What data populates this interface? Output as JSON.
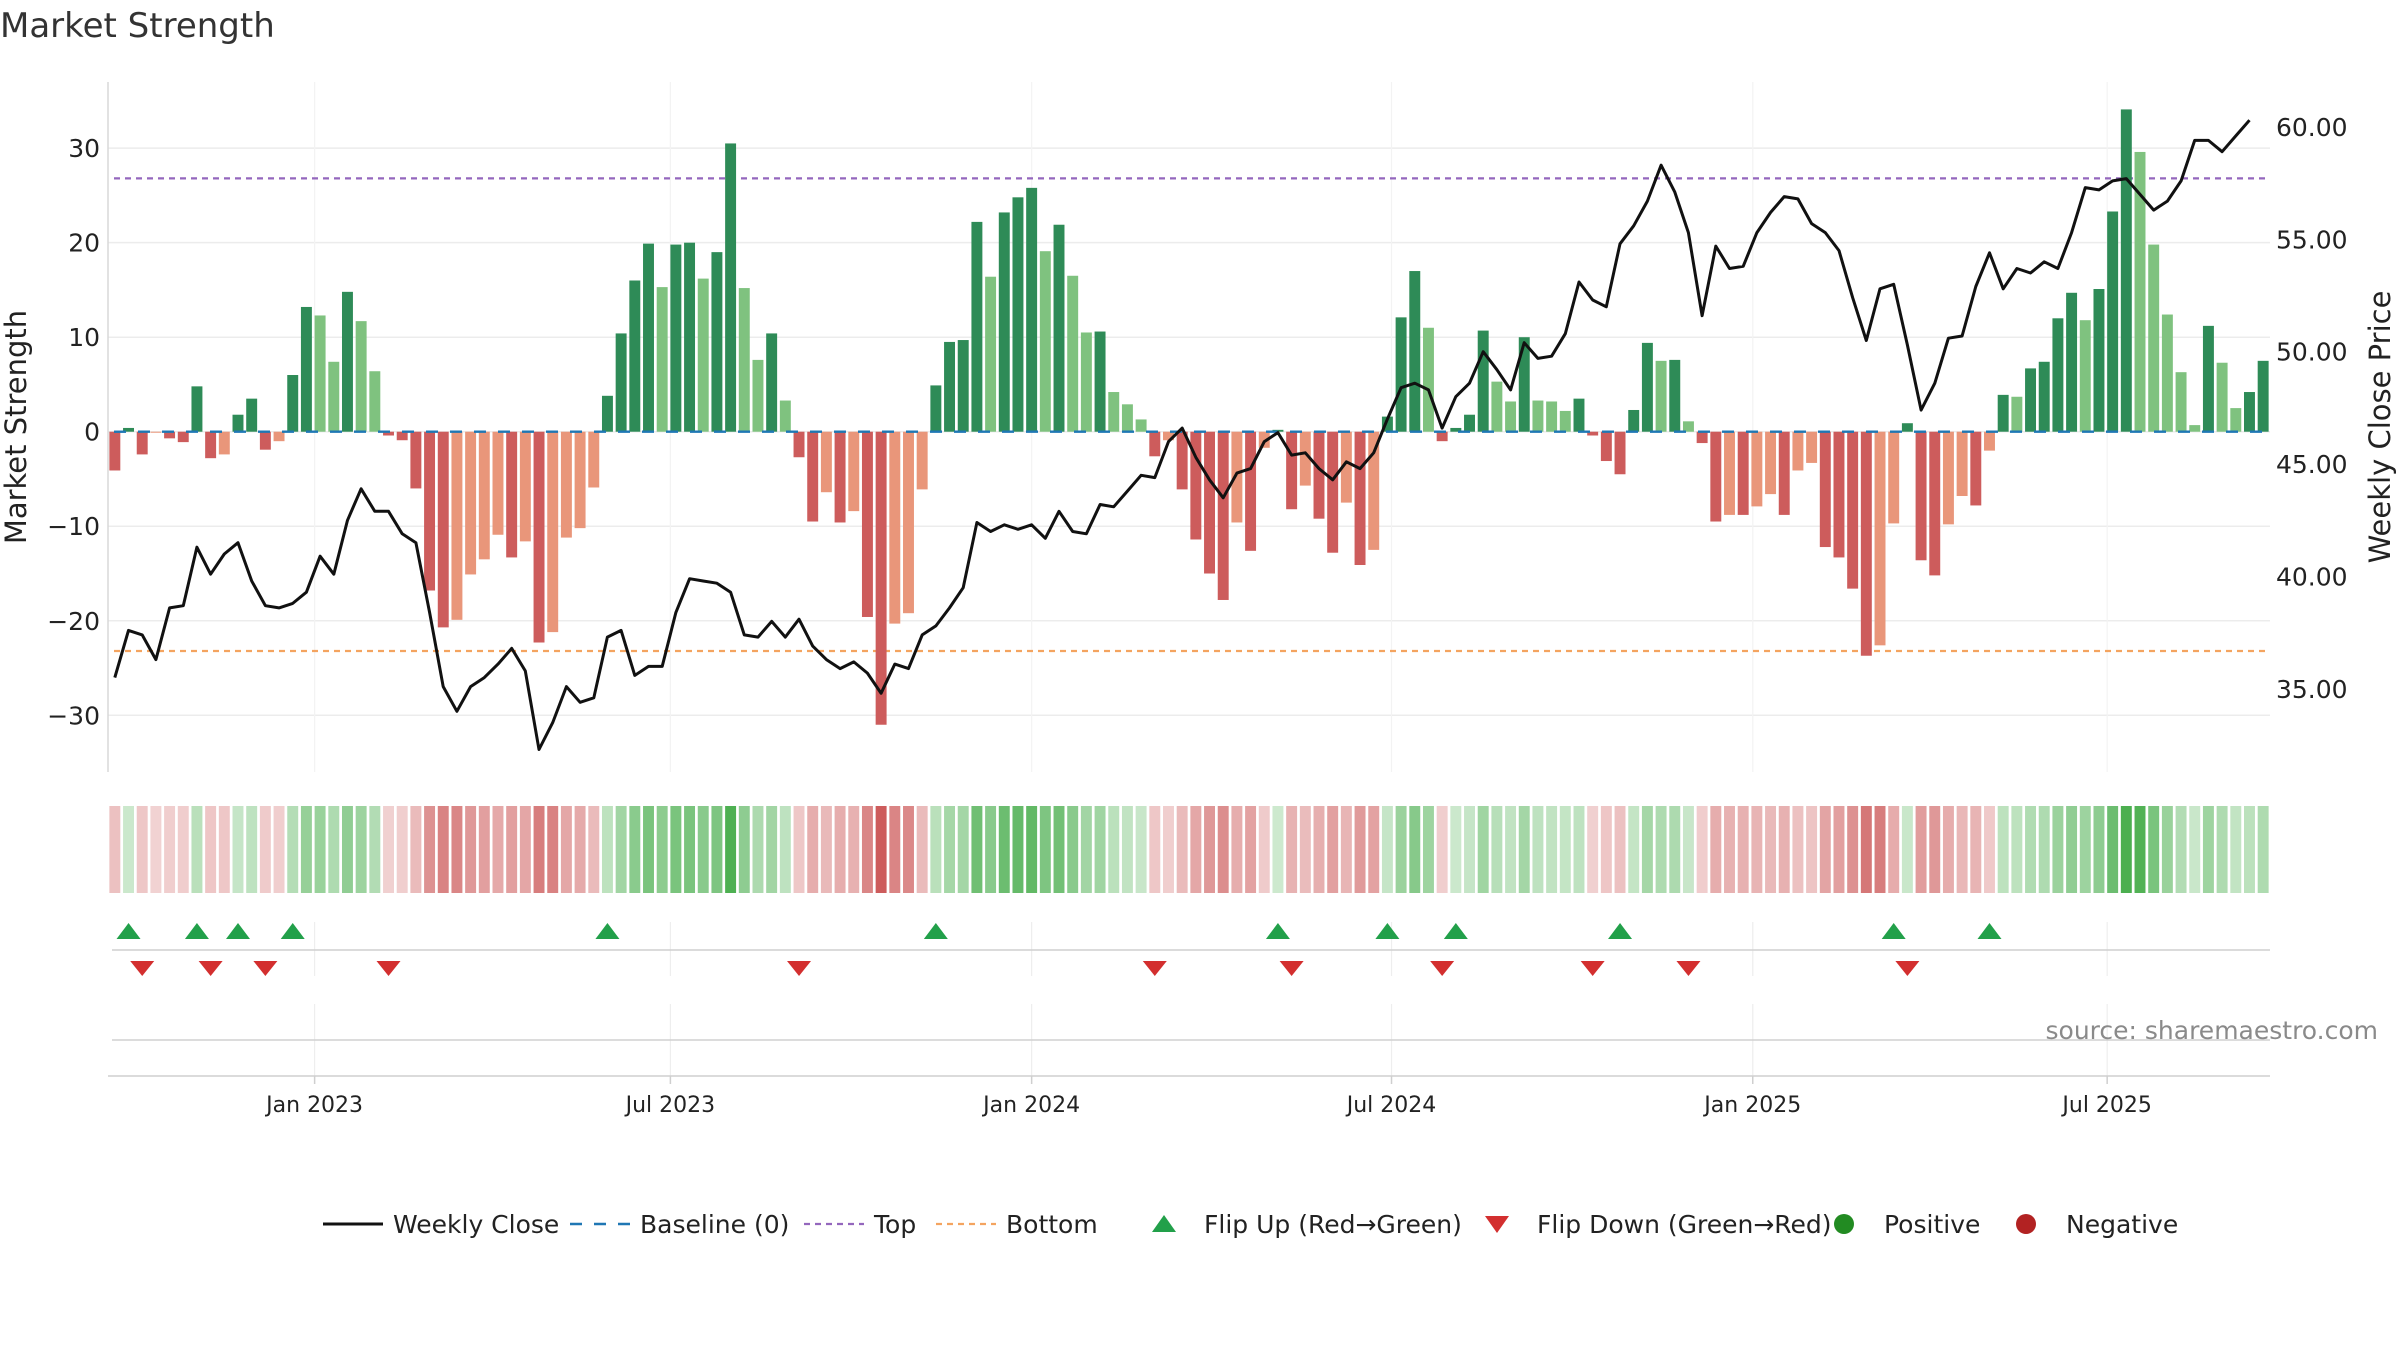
{
  "title": "Market Strength",
  "source_text": "source: sharemaestro.com",
  "colors": {
    "green_dark": "#2e8b57",
    "green_light": "#7fc27f",
    "red_dark": "#cd5c5c",
    "red_light": "#e9967a",
    "price_line": "#111111",
    "baseline": "#1f77b4",
    "top_line": "#9467bd",
    "bottom_line": "#f4a460",
    "flip_up": "#22a04a",
    "flip_down": "#d32f2f",
    "positive": "#228b22",
    "negative": "#b22222"
  },
  "chart_data": {
    "type": "bar",
    "title": "Market Strength",
    "ylabel": "Market Strength",
    "y2label": "Weekly Close Price",
    "ylim": [
      -36,
      37
    ],
    "y2lim": [
      31.3,
      62.0
    ],
    "yticks": [
      30,
      20,
      10,
      0,
      -10,
      -20,
      -30
    ],
    "ytick_labels": [
      "30",
      "20",
      "10",
      "0",
      "−10",
      "−20",
      "−30"
    ],
    "y2ticks": [
      60,
      55,
      50,
      45,
      40,
      35
    ],
    "y2tick_labels": [
      "60.00",
      "55.00",
      "50.00",
      "45.00",
      "40.00",
      "35.00"
    ],
    "xtick_labels": [
      "Jan 2023",
      "Jul 2023",
      "Jan 2024",
      "Jul 2024",
      "Jan 2025",
      "Jul 2025"
    ],
    "xtick_weeks": [
      14.6,
      40.6,
      67.0,
      93.3,
      119.7,
      145.6
    ],
    "top_threshold": 26.8,
    "bottom_threshold": -23.2,
    "strength_values": [
      -4.1,
      0.4,
      -2.4,
      -0.1,
      -0.7,
      -1.1,
      4.8,
      -2.8,
      -2.4,
      1.8,
      3.5,
      -1.9,
      -1.0,
      6.0,
      13.2,
      12.3,
      7.4,
      14.8,
      11.7,
      6.4,
      -0.4,
      -0.9,
      -6.0,
      -16.8,
      -20.7,
      -19.9,
      -15.1,
      -13.5,
      -10.9,
      -13.3,
      -11.6,
      -22.3,
      -21.2,
      -11.2,
      -10.2,
      -5.9,
      3.8,
      10.4,
      16.0,
      19.9,
      15.3,
      19.8,
      20.0,
      16.2,
      19.0,
      30.5,
      15.2,
      7.6,
      10.4,
      3.3,
      -2.7,
      -9.5,
      -6.4,
      -9.6,
      -8.4,
      -19.6,
      -31.0,
      -20.3,
      -19.2,
      -6.1,
      4.9,
      9.5,
      9.7,
      22.2,
      16.4,
      23.2,
      24.8,
      25.8,
      19.1,
      21.9,
      16.5,
      10.5,
      10.6,
      4.2,
      2.9,
      1.3,
      -2.6,
      -0.9,
      -6.1,
      -11.4,
      -15.0,
      -17.8,
      -9.6,
      -12.6,
      -1.7,
      0.2,
      -8.2,
      -5.7,
      -9.2,
      -12.8,
      -7.5,
      -14.1,
      -12.5,
      1.6,
      12.1,
      17.0,
      11.0,
      -1.0,
      0.4,
      1.8,
      10.7,
      5.3,
      3.2,
      10.0,
      3.3,
      3.2,
      2.2,
      3.5,
      -0.4,
      -3.1,
      -4.5,
      2.3,
      9.4,
      7.5,
      7.6,
      1.1,
      -1.2,
      -9.5,
      -8.8,
      -8.8,
      -7.9,
      -6.6,
      -8.8,
      -4.1,
      -3.3,
      -12.2,
      -13.3,
      -16.6,
      -23.7,
      -22.6,
      -9.7,
      0.9,
      -13.6,
      -15.2,
      -9.8,
      -6.8,
      -7.8,
      -2.0,
      3.9,
      3.7,
      6.7,
      7.4,
      12.0,
      14.7,
      11.8,
      15.1,
      23.3,
      34.1,
      29.6,
      19.8,
      12.4,
      6.3,
      0.7,
      11.2,
      7.3,
      2.5,
      4.2,
      7.5
    ],
    "close_values": [
      35.5,
      37.6,
      37.4,
      36.3,
      38.6,
      38.7,
      41.3,
      40.1,
      41.0,
      41.5,
      39.8,
      38.7,
      38.6,
      38.8,
      39.3,
      40.9,
      40.1,
      42.5,
      43.9,
      42.9,
      42.9,
      41.9,
      41.5,
      38.4,
      35.1,
      34.0,
      35.1,
      35.5,
      36.1,
      36.8,
      35.8,
      32.3,
      33.5,
      35.1,
      34.4,
      34.6,
      37.3,
      37.6,
      35.6,
      36.0,
      36.0,
      38.4,
      39.9,
      39.8,
      39.7,
      39.3,
      37.4,
      37.3,
      38.0,
      37.3,
      38.1,
      36.9,
      36.3,
      35.9,
      36.2,
      35.7,
      34.8,
      36.1,
      35.9,
      37.4,
      37.8,
      38.6,
      39.5,
      42.4,
      42.0,
      42.3,
      42.1,
      42.3,
      41.7,
      42.9,
      42.0,
      41.9,
      43.2,
      43.1,
      43.8,
      44.5,
      44.4,
      46.0,
      46.6,
      45.3,
      44.3,
      43.5,
      44.6,
      44.8,
      46.0,
      46.4,
      45.4,
      45.5,
      44.8,
      44.3,
      45.1,
      44.8,
      45.5,
      47.0,
      48.4,
      48.6,
      48.3,
      46.6,
      48.0,
      48.6,
      50.0,
      49.2,
      48.3,
      50.4,
      49.7,
      49.8,
      50.8,
      53.1,
      52.3,
      52.0,
      54.8,
      55.6,
      56.7,
      58.3,
      57.1,
      55.3,
      51.6,
      54.7,
      53.7,
      53.8,
      55.3,
      56.2,
      56.9,
      56.8,
      55.7,
      55.3,
      54.5,
      52.4,
      50.5,
      52.8,
      53.0,
      50.3,
      47.4,
      48.6,
      50.6,
      50.7,
      52.9,
      54.4,
      52.8,
      53.7,
      53.5,
      54.0,
      53.7,
      55.3,
      57.3,
      57.2,
      57.6,
      57.7,
      57.0,
      56.3,
      56.7,
      57.6,
      59.4,
      59.4,
      58.9,
      59.6,
      60.3
    ],
    "flip_up_weeks": [
      1,
      6,
      9,
      13,
      36,
      60,
      85,
      93,
      98,
      110,
      130,
      137
    ],
    "flip_down_weeks": [
      2,
      7,
      11,
      20,
      50,
      76,
      86,
      97,
      108,
      115,
      131
    ],
    "legend": [
      "Weekly Close",
      "Baseline (0)",
      "Top",
      "Bottom",
      "Flip Up (Red→Green)",
      "Flip Down (Green→Red)",
      "Positive",
      "Negative"
    ],
    "legend_placement": "bottom-center",
    "grid": true
  }
}
